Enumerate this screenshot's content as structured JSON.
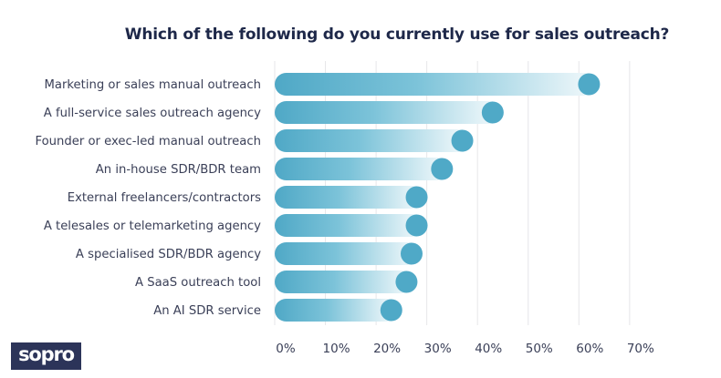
{
  "logo": {
    "text": "sopro"
  },
  "chart_data": {
    "type": "bar",
    "orientation": "horizontal",
    "title": "Which of the following do you currently use for sales outreach?",
    "xlabel": "",
    "ylabel": "",
    "xlim": [
      0,
      70
    ],
    "x_ticks": [
      0,
      10,
      20,
      30,
      40,
      50,
      60,
      70
    ],
    "x_tick_labels": [
      "0%",
      "10%",
      "20%",
      "30%",
      "40%",
      "50%",
      "60%",
      "70%"
    ],
    "grid": "vertical",
    "value_unit": "%",
    "categories": [
      "Marketing or sales manual outreach",
      "A full-service sales outreach agency",
      "Founder or exec-led manual outreach",
      "An in-house SDR/BDR team",
      "External freelancers/contractors",
      "A telesales or telemarketing agency",
      "A specialised SDR/BDR agency",
      "A SaaS outreach tool",
      "An AI SDR service"
    ],
    "values": [
      62,
      43,
      37,
      33,
      28,
      28,
      27,
      26,
      23
    ],
    "colors": {
      "bar_start": "#4FA8C6",
      "bar_end": "#EEF7FA",
      "marker": "#4FA9C7",
      "grid": "#E6E6E9",
      "text": "#3B4058",
      "title": "#1E2849"
    }
  }
}
